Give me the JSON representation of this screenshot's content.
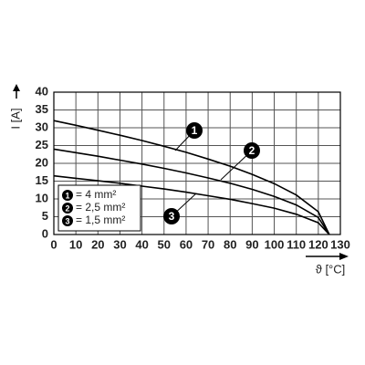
{
  "chart_data": {
    "type": "line",
    "xlabel": "ϑ [°C]",
    "ylabel": "I [A]",
    "x": [
      0,
      10,
      20,
      30,
      40,
      50,
      60,
      70,
      80,
      90,
      100,
      110,
      120,
      125
    ],
    "series": [
      {
        "name": "= 4 mm²",
        "marker": "1",
        "color": "#000000",
        "values": [
          32,
          30.7,
          29.3,
          27.9,
          26.4,
          24.8,
          23.1,
          21.2,
          19.2,
          16.9,
          14.3,
          11.1,
          6.4,
          0
        ]
      },
      {
        "name": "= 2,5 mm²",
        "marker": "2",
        "color": "#000000",
        "values": [
          24,
          23,
          22,
          20.9,
          19.8,
          18.6,
          17.3,
          15.9,
          14.4,
          12.7,
          10.7,
          8.3,
          4.8,
          0
        ]
      },
      {
        "name": "= 1,5 mm²",
        "marker": "3",
        "color": "#000000",
        "values": [
          16.5,
          15.8,
          15.1,
          14.4,
          13.6,
          12.8,
          11.9,
          10.9,
          9.9,
          8.7,
          7.4,
          5.7,
          3.3,
          0
        ]
      }
    ],
    "xlim": [
      0,
      130
    ],
    "xticks": [
      0,
      10,
      20,
      30,
      40,
      50,
      60,
      70,
      80,
      90,
      100,
      110,
      120,
      130
    ],
    "ylim": [
      0,
      40
    ],
    "yticks": [
      0,
      5,
      10,
      15,
      20,
      25,
      30,
      35,
      40
    ],
    "grid": true,
    "legend": "lower left"
  }
}
